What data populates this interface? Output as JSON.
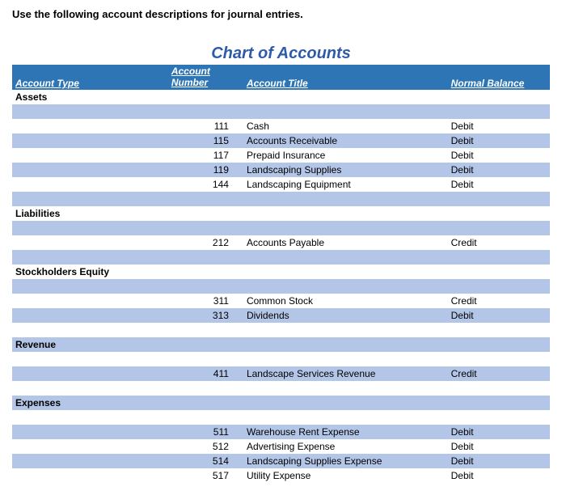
{
  "instruction": "Use the following account descriptions for journal entries.",
  "chart_title": "Chart of Accounts",
  "colors": {
    "header_bg": "#2e75b6",
    "title_color": "#2e5aac",
    "band_bg": "#b4c6e7",
    "text": "#000000",
    "page_bg": "#ffffff"
  },
  "fonts": {
    "body_size": 12,
    "title_size": 20
  },
  "headers": {
    "type": "Account Type",
    "number_line1": "Account",
    "number_line2": "Number",
    "title": "Account Title",
    "balance": "Normal Balance"
  },
  "sections": [
    {
      "name": "Assets",
      "rows": [
        {
          "num": "",
          "title": "",
          "bal": ""
        },
        {
          "num": "111",
          "title": "Cash",
          "bal": "Debit"
        },
        {
          "num": "115",
          "title": "Accounts Receivable",
          "bal": "Debit"
        },
        {
          "num": "117",
          "title": "Prepaid Insurance",
          "bal": "Debit"
        },
        {
          "num": "119",
          "title": "Landscaping Supplies",
          "bal": "Debit"
        },
        {
          "num": "144",
          "title": "Landscaping Equipment",
          "bal": "Debit"
        }
      ]
    },
    {
      "name": "Liabilities",
      "pre_blank": true,
      "rows": [
        {
          "num": "",
          "title": "",
          "bal": ""
        },
        {
          "num": "212",
          "title": "Accounts Payable",
          "bal": "Credit"
        }
      ]
    },
    {
      "name": "Stockholders Equity",
      "pre_blank": true,
      "rows": [
        {
          "num": "",
          "title": "",
          "bal": ""
        },
        {
          "num": "311",
          "title": "Common Stock",
          "bal": "Credit"
        },
        {
          "num": "313",
          "title": "Dividends",
          "bal": "Debit"
        }
      ]
    },
    {
      "name": "Revenue",
      "pre_blank": true,
      "rows": [
        {
          "num": "",
          "title": "",
          "bal": ""
        },
        {
          "num": "411",
          "title": "Landscape Services Revenue",
          "bal": "Credit"
        }
      ]
    },
    {
      "name": "Expenses",
      "pre_blank": true,
      "rows": [
        {
          "num": "",
          "title": "",
          "bal": ""
        },
        {
          "num": "511",
          "title": "Warehouse  Rent Expense",
          "bal": "Debit"
        },
        {
          "num": "512",
          "title": "Advertising Expense",
          "bal": "Debit"
        },
        {
          "num": "514",
          "title": "Landscaping Supplies Expense",
          "bal": "Debit"
        },
        {
          "num": "517",
          "title": "Utility Expense",
          "bal": "Debit"
        }
      ]
    }
  ]
}
